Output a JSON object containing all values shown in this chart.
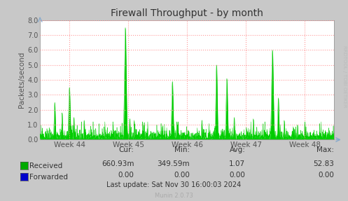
{
  "title": "Firewall Throughput - by month",
  "ylabel": "Packets/second",
  "ylim": [
    0.0,
    8.0
  ],
  "yticks": [
    0.0,
    1.0,
    2.0,
    3.0,
    4.0,
    5.0,
    6.0,
    7.0,
    8.0
  ],
  "xtick_labels": [
    "Week 44",
    "Week 45",
    "Week 46",
    "Week 47",
    "Week 48"
  ],
  "background_color": "#c8c8c8",
  "plot_bg_color": "#ffffff",
  "grid_color": "#ff9999",
  "fill_color": "#00cc00",
  "line_color": "#00cc00",
  "title_color": "#333333",
  "axis_color": "#555555",
  "tick_color": "#555555",
  "legend_received_color": "#00aa00",
  "legend_forwarded_color": "#0000cc",
  "watermark": "RRDTOOL / TOBI OETIKER",
  "munin_version": "Munin 2.0.73",
  "stats_cur": "660.93m",
  "stats_min": "349.59m",
  "stats_avg": "1.07",
  "stats_max": "52.83",
  "stats_cur2": "0.00",
  "stats_min2": "0.00",
  "stats_avg2": "0.00",
  "stats_max2": "0.00",
  "last_update": "Last update: Sat Nov 30 16:00:03 2024",
  "n_points": 2000,
  "seed": 99
}
